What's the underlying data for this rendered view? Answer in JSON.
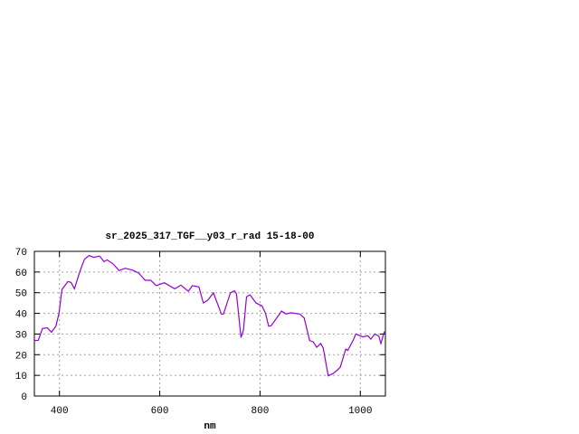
{
  "chart_data": {
    "type": "line",
    "title": "sr_2025_317_TGF__y03_r_rad 15-18-00",
    "xlabel": "nm",
    "ylabel": "",
    "xlim": [
      350,
      1050
    ],
    "ylim": [
      0,
      70
    ],
    "xticks": [
      400,
      600,
      800,
      1000
    ],
    "yticks": [
      0,
      10,
      20,
      30,
      40,
      50,
      60,
      70
    ],
    "grid": true,
    "legend": "none",
    "colors": {
      "line": "#9400d3",
      "grid": "#a0a0a0",
      "axes": "#000000"
    },
    "series": [
      {
        "x": [
          350,
          358,
          366,
          376,
          384,
          393,
          399,
          405,
          417,
          423,
          430,
          441,
          450,
          459,
          468,
          480,
          489,
          495,
          507,
          519,
          531,
          546,
          558,
          571,
          582,
          593,
          609,
          630,
          642,
          657,
          665,
          678,
          687,
          696,
          707,
          723,
          727,
          741,
          749,
          753,
          762,
          767,
          773,
          780,
          792,
          804,
          811,
          817,
          822,
          843,
          852,
          861,
          879,
          888,
          899,
          906,
          913,
          921,
          926,
          936,
          945,
          954,
          960,
          971,
          975,
          986,
          991,
          1005,
          1015,
          1021,
          1029,
          1037,
          1041,
          1048
        ],
        "y": [
          26.8,
          27,
          32.7,
          33,
          30.9,
          33.8,
          40,
          51.6,
          55.4,
          55,
          51.9,
          60.4,
          66.2,
          68,
          67.1,
          67.7,
          65,
          65.9,
          63.9,
          60.7,
          61.8,
          60.9,
          59.5,
          56,
          56,
          53.4,
          54.8,
          51.9,
          53.7,
          50.7,
          53.4,
          52.8,
          45,
          46.4,
          49.9,
          39.7,
          39.7,
          49.9,
          50.9,
          49.4,
          28.3,
          31.9,
          48,
          49,
          45,
          43.6,
          40,
          33.8,
          34,
          41.1,
          39.7,
          40.3,
          39.7,
          37.8,
          26.8,
          26.2,
          23.6,
          25.4,
          23.2,
          9.8,
          10.8,
          12.5,
          14,
          22.7,
          22.1,
          27.1,
          30,
          28.6,
          29.2,
          27.5,
          30,
          28.9,
          25.4,
          31.2
        ]
      }
    ]
  }
}
